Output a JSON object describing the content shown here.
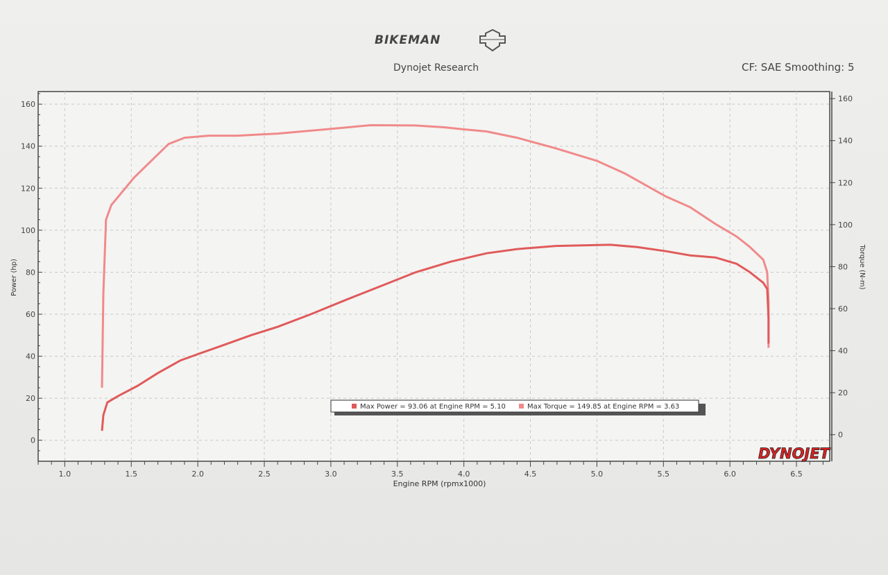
{
  "header": {
    "brand": "BIKEMAN",
    "subtitle": "Dynojet Research",
    "settings": "CF: SAE Smoothing: 5"
  },
  "logo_text": "DYNOJET",
  "chart_data": {
    "type": "line",
    "xlabel": "Engine RPM (rpmx1000)",
    "ylabel": "Power (hp)",
    "y2label": "Torque (N-m)",
    "xlim": [
      0.8,
      6.75
    ],
    "ylim": [
      -10,
      166
    ],
    "y2lim": [
      -10,
      166
    ],
    "xticks": [
      "1.0",
      "1.5",
      "2.0",
      "2.5",
      "3.0",
      "3.5",
      "4.0",
      "4.5",
      "5.0",
      "5.5",
      "6.0",
      "6.5"
    ],
    "yticks": [
      "0",
      "20",
      "40",
      "60",
      "80",
      "100",
      "120",
      "140",
      "160"
    ],
    "y2ticks": [
      "0",
      "20",
      "40",
      "60",
      "80",
      "100",
      "120",
      "140",
      "160"
    ],
    "grid": true,
    "legend": {
      "position": "bottom-center",
      "entries": [
        "Max Power = 93.06 at Engine RPM = 5.10",
        "Max Torque = 149.85 at Engine RPM = 3.63"
      ]
    },
    "series": [
      {
        "name": "Torque",
        "axis": "right",
        "color": "#f08a8a",
        "x": [
          1.28,
          1.29,
          1.31,
          1.35,
          1.39,
          1.52,
          1.65,
          1.78,
          1.9,
          2.08,
          2.3,
          2.6,
          2.96,
          3.3,
          3.63,
          3.85,
          4.0,
          4.17,
          4.4,
          4.69,
          5.0,
          5.21,
          5.52,
          5.7,
          5.89,
          6.05,
          6.15,
          6.25,
          6.28,
          6.29,
          6.29
        ],
        "y": [
          25,
          70,
          105,
          112,
          115,
          125,
          133,
          141,
          144,
          145,
          145,
          146,
          148,
          150,
          149.85,
          149,
          148,
          147,
          144,
          139,
          133,
          127,
          116,
          111,
          103,
          97,
          92,
          86,
          80,
          66,
          44
        ]
      },
      {
        "name": "Power",
        "axis": "left",
        "color": "#e05a5a",
        "x": [
          1.28,
          1.29,
          1.32,
          1.4,
          1.55,
          1.7,
          1.87,
          2.0,
          2.18,
          2.4,
          2.6,
          2.85,
          3.12,
          3.4,
          3.64,
          3.9,
          4.17,
          4.4,
          4.69,
          5.1,
          5.3,
          5.52,
          5.7,
          5.89,
          6.05,
          6.15,
          6.25,
          6.28,
          6.29,
          6.29
        ],
        "y": [
          4.5,
          12,
          18,
          21,
          26,
          32,
          38,
          41,
          45,
          50,
          54,
          60,
          67,
          74,
          80,
          85,
          89,
          91,
          92.5,
          93.06,
          92,
          90,
          88,
          87,
          84,
          80,
          75,
          72,
          58,
          46
        ]
      }
    ]
  }
}
